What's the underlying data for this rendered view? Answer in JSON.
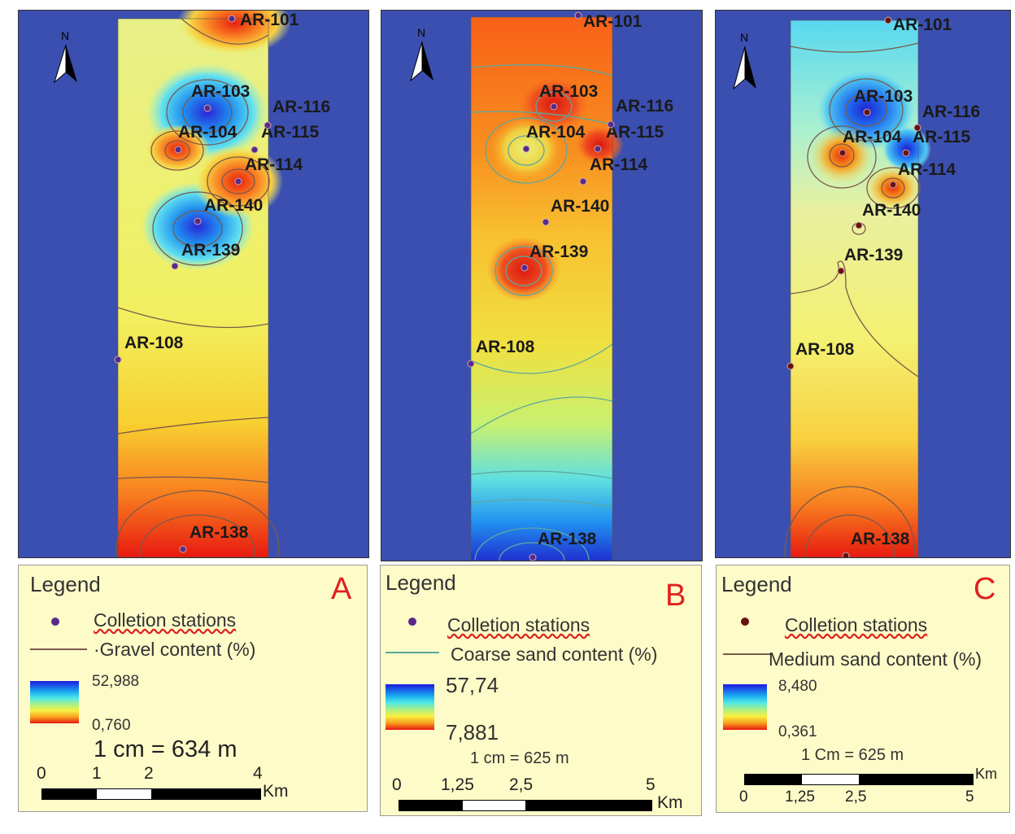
{
  "panels": [
    {
      "letter": "A",
      "legend_title": "Legend",
      "station_label": "Colletion stations",
      "content_label": "·Gravel content (%)",
      "ramp_max": "52,988",
      "ramp_min": "0,760",
      "scale_text": "1 cm = 634 m",
      "scale_ticks": [
        "0",
        "1",
        "2",
        "4"
      ],
      "scale_unit": "Km",
      "station_color": "#5a2a8a",
      "contour_color": "#7a5a4a",
      "north": "N",
      "stations": [
        "AR-101",
        "AR-103",
        "AR-116",
        "AR-104",
        "AR-115",
        "AR-114",
        "AR-140",
        "AR-139",
        "AR-108",
        "AR-138"
      ]
    },
    {
      "letter": "B",
      "legend_title": "Legend",
      "station_label": "Colletion stations",
      "content_label": "Coarse sand content (%)",
      "ramp_max": "57,74",
      "ramp_min": "7,881",
      "scale_text": "1 cm = 625 m",
      "scale_ticks": [
        "0",
        "1,25",
        "2,5",
        "5"
      ],
      "scale_unit": "Km",
      "station_color": "#5a2a8a",
      "contour_color": "#5aa8a0",
      "north": "N",
      "stations": [
        "AR-101",
        "AR-103",
        "AR-116",
        "AR-104",
        "AR-115",
        "AR-114",
        "AR-140",
        "AR-139",
        "AR-108",
        "AR-138"
      ]
    },
    {
      "letter": "C",
      "legend_title": "Legend",
      "station_label": "Colletion stations",
      "content_label": "Medium sand content (%)",
      "ramp_max": "8,480",
      "ramp_min": "0,361",
      "scale_text": "1 Cm = 625 m",
      "scale_ticks": [
        "0",
        "1,25",
        "2,5",
        "5"
      ],
      "scale_unit": "Km",
      "station_color": "#6a1010",
      "contour_color": "#7a5a4a",
      "north": "N",
      "stations": [
        "AR-101",
        "AR-103",
        "AR-116",
        "AR-104",
        "AR-115",
        "AR-114",
        "AR-140",
        "AR-139",
        "AR-108",
        "AR-138"
      ]
    }
  ]
}
